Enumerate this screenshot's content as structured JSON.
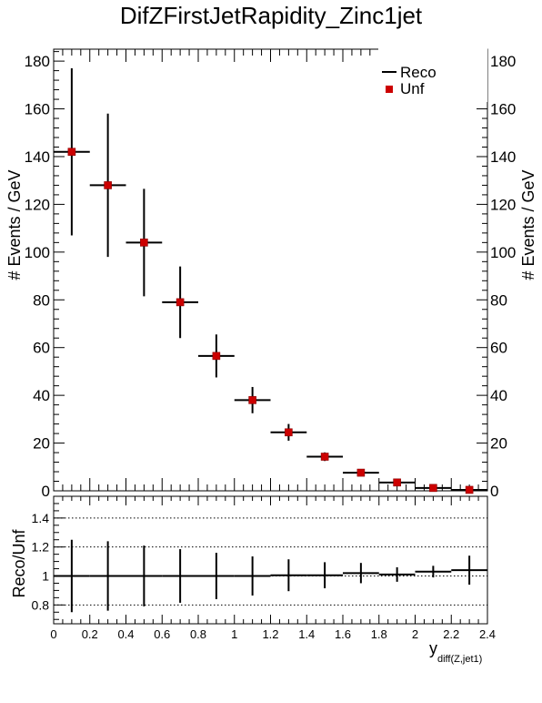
{
  "chart_data": [
    {
      "type": "scatter",
      "title": "DifZFirstJetRapidity_Zinc1jet",
      "ylabel": "# Events / GeV",
      "xlim": [
        0,
        2.4
      ],
      "ylim": [
        0,
        185
      ],
      "x_ticks": [
        "0",
        "0.2",
        "0.4",
        "0.6",
        "0.8",
        "1",
        "1.2",
        "1.4",
        "1.6",
        "1.8",
        "2",
        "2.2",
        "2.4"
      ],
      "y_ticks": [
        "0",
        "20",
        "40",
        "60",
        "80",
        "100",
        "120",
        "140",
        "160",
        "180"
      ],
      "legend": {
        "position": "top-right",
        "entries": [
          "Reco",
          "Unf"
        ]
      },
      "series": [
        {
          "name": "Reco",
          "style": "error-bars",
          "color": "#000000",
          "x": [
            0.1,
            0.3,
            0.5,
            0.7,
            0.9,
            1.1,
            1.3,
            1.5,
            1.7,
            1.9,
            2.1,
            2.3
          ],
          "xerr": 0.1,
          "y": [
            142,
            128,
            104,
            79,
            56.5,
            38,
            24.5,
            14.3,
            7.6,
            3.5,
            1.2,
            0.4
          ],
          "yerr": [
            35,
            30,
            22.5,
            15,
            9,
            5.5,
            3.5,
            1.8,
            1.2,
            0.6,
            0.3,
            0.2
          ]
        },
        {
          "name": "Unf",
          "style": "markers",
          "color": "#cc0000",
          "x": [
            0.1,
            0.3,
            0.5,
            0.7,
            0.9,
            1.1,
            1.3,
            1.5,
            1.7,
            1.9,
            2.1,
            2.3
          ],
          "y": [
            142,
            128,
            104,
            79,
            56.5,
            38,
            24.5,
            14.3,
            7.6,
            3.5,
            1.2,
            0.4
          ]
        }
      ]
    },
    {
      "type": "scatter",
      "ylabel": "Reco/Unf",
      "xlabel": "y",
      "xlabel_sub": "diff(Z,jet1)",
      "xlim": [
        0,
        2.4
      ],
      "ylim": [
        0.67,
        1.55
      ],
      "y_ticks": [
        "0.8",
        "1",
        "1.2",
        "1.4"
      ],
      "grid_y_values": [
        0.8,
        1.0,
        1.2,
        1.4
      ],
      "series": [
        {
          "style": "error-bars",
          "color": "#000000",
          "x": [
            0.1,
            0.3,
            0.5,
            0.7,
            0.9,
            1.1,
            1.3,
            1.5,
            1.7,
            1.9,
            2.1,
            2.3
          ],
          "xerr": 0.1,
          "y": [
            1.0,
            1.0,
            1.0,
            1.0,
            1.0,
            1.0,
            1.005,
            1.005,
            1.02,
            1.01,
            1.03,
            1.04
          ],
          "yerr": [
            0.25,
            0.24,
            0.21,
            0.185,
            0.16,
            0.135,
            0.11,
            0.09,
            0.07,
            0.05,
            0.04,
            0.1
          ]
        }
      ]
    }
  ]
}
